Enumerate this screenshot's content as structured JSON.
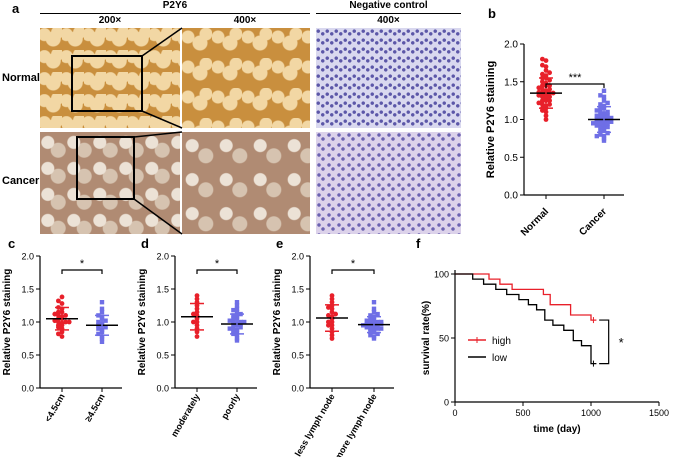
{
  "panel_a": {
    "letter": "a",
    "group_p2y6": "P2Y6",
    "group_neg": "Negative control",
    "mag_200": "200×",
    "mag_400a": "400×",
    "mag_400b": "400×",
    "row_normal": "Normal",
    "row_cancer": "Cancer"
  },
  "colors": {
    "red": "#e8202a",
    "blue": "#6f6fe6",
    "black": "#000000"
  },
  "chart_data": [
    {
      "id": "b",
      "type": "scatter",
      "letter": "b",
      "ylabel": "Relative P2Y6 staining",
      "ylim": [
        0,
        2.0
      ],
      "yticks": [
        "0.0",
        "0.5",
        "1.0",
        "1.5",
        "2.0"
      ],
      "categories": [
        "Normal",
        "Cancer"
      ],
      "significance": "***",
      "series": [
        {
          "color": "#e8202a",
          "marker": "circle",
          "mean": 1.35,
          "sd": 0.2,
          "values": [
            1.05,
            1.1,
            1.12,
            1.15,
            1.18,
            1.2,
            1.2,
            1.22,
            1.25,
            1.25,
            1.28,
            1.3,
            1.3,
            1.32,
            1.33,
            1.35,
            1.35,
            1.36,
            1.38,
            1.4,
            1.4,
            1.42,
            1.45,
            1.45,
            1.48,
            1.5,
            1.52,
            1.55,
            1.55,
            1.58,
            1.6,
            1.62,
            1.65,
            1.7,
            1.72,
            1.78,
            1.8,
            1.15,
            1.25,
            1.35,
            1.45,
            1.0
          ]
        },
        {
          "color": "#6f6fe6",
          "marker": "square",
          "mean": 1.0,
          "sd": 0.17,
          "values": [
            0.72,
            0.75,
            0.78,
            0.8,
            0.82,
            0.85,
            0.88,
            0.9,
            0.9,
            0.92,
            0.93,
            0.95,
            0.95,
            0.96,
            0.97,
            0.98,
            1.0,
            1.0,
            1.0,
            1.02,
            1.03,
            1.05,
            1.05,
            1.08,
            1.1,
            1.1,
            1.12,
            1.15,
            1.18,
            1.2,
            1.22,
            1.25,
            1.3,
            1.32,
            1.38,
            0.85,
            0.95,
            1.05,
            1.15,
            0.78
          ]
        }
      ]
    },
    {
      "id": "c",
      "type": "scatter",
      "letter": "c",
      "ylabel": "Relative P2Y6 staining",
      "ylim": [
        0,
        2.0
      ],
      "yticks": [
        "0.0",
        "0.5",
        "1.0",
        "1.5",
        "2.0"
      ],
      "categories": [
        "<4.5cm",
        "≥4.5cm"
      ],
      "significance": "*",
      "series": [
        {
          "color": "#e8202a",
          "marker": "circle",
          "mean": 1.05,
          "sd": 0.17,
          "values": [
            0.78,
            0.82,
            0.85,
            0.9,
            0.92,
            0.95,
            0.98,
            1.0,
            1.0,
            1.02,
            1.05,
            1.05,
            1.08,
            1.1,
            1.1,
            1.12,
            1.15,
            1.2,
            1.22,
            1.28,
            1.32,
            1.38,
            0.95,
            1.0,
            1.15
          ]
        },
        {
          "color": "#6f6fe6",
          "marker": "square",
          "mean": 0.95,
          "sd": 0.15,
          "values": [
            0.7,
            0.75,
            0.78,
            0.82,
            0.85,
            0.88,
            0.9,
            0.92,
            0.95,
            0.95,
            0.98,
            1.0,
            1.02,
            1.05,
            1.08,
            1.1,
            1.15,
            1.2,
            1.3
          ]
        }
      ]
    },
    {
      "id": "d",
      "type": "scatter",
      "letter": "d",
      "ylabel": "Relative P2Y6 staining",
      "ylim": [
        0,
        2.0
      ],
      "yticks": [
        "0.0",
        "0.5",
        "1.0",
        "1.5",
        "2.0"
      ],
      "categories": [
        "moderately",
        "poorly"
      ],
      "significance": "*",
      "series": [
        {
          "color": "#e8202a",
          "marker": "circle",
          "mean": 1.08,
          "sd": 0.2,
          "values": [
            0.78,
            0.85,
            0.9,
            0.95,
            1.0,
            1.05,
            1.1,
            1.12,
            1.15,
            1.2,
            1.25,
            1.3,
            1.35,
            1.4,
            1.0
          ]
        },
        {
          "color": "#6f6fe6",
          "marker": "square",
          "mean": 0.97,
          "sd": 0.15,
          "values": [
            0.72,
            0.75,
            0.8,
            0.82,
            0.85,
            0.88,
            0.9,
            0.92,
            0.95,
            0.95,
            0.98,
            1.0,
            1.0,
            1.02,
            1.05,
            1.08,
            1.1,
            1.12,
            1.15,
            1.2,
            1.25,
            1.3,
            0.9,
            1.0,
            1.05,
            0.85,
            0.97,
            1.18
          ]
        }
      ]
    },
    {
      "id": "e",
      "type": "scatter",
      "letter": "e",
      "ylabel": "Relative P2Y6 staining",
      "ylim": [
        0,
        2.0
      ],
      "yticks": [
        "0.0",
        "0.5",
        "1.0",
        "1.5",
        "2.0"
      ],
      "categories": [
        "less lymph node",
        "more lymph node"
      ],
      "significance": "*",
      "series": [
        {
          "color": "#e8202a",
          "marker": "circle",
          "mean": 1.06,
          "sd": 0.2,
          "values": [
            0.75,
            0.8,
            0.85,
            0.9,
            0.95,
            1.0,
            1.0,
            1.05,
            1.08,
            1.1,
            1.15,
            1.2,
            1.22,
            1.25,
            1.3,
            1.35,
            1.4,
            0.95,
            1.12
          ]
        },
        {
          "color": "#6f6fe6",
          "marker": "square",
          "mean": 0.96,
          "sd": 0.12,
          "values": [
            0.75,
            0.78,
            0.8,
            0.82,
            0.85,
            0.88,
            0.9,
            0.9,
            0.92,
            0.93,
            0.95,
            0.95,
            0.96,
            0.97,
            0.98,
            1.0,
            1.0,
            1.02,
            1.03,
            1.05,
            1.08,
            1.1,
            1.12,
            1.15,
            1.2,
            1.3,
            0.9,
            1.0,
            0.85,
            0.95
          ]
        }
      ]
    },
    {
      "id": "f",
      "type": "line",
      "letter": "f",
      "xlabel": "time (day)",
      "ylabel": "survival rate(%)",
      "xlim": [
        0,
        1500
      ],
      "ylim": [
        0,
        100
      ],
      "xticks": [
        "0",
        "500",
        "1000",
        "1500"
      ],
      "yticks": [
        "0",
        "50",
        "100"
      ],
      "legend_position": "center-left",
      "significance": "*",
      "series": [
        {
          "name": "high",
          "color": "#e8202a",
          "x": [
            0,
            250,
            250,
            330,
            330,
            420,
            420,
            650,
            650,
            700,
            700,
            850,
            850,
            1000,
            1000,
            1040
          ],
          "y": [
            100,
            100,
            96,
            96,
            92,
            92,
            88,
            88,
            84,
            84,
            76,
            76,
            68,
            68,
            64,
            64
          ]
        },
        {
          "name": "low",
          "color": "#000000",
          "x": [
            0,
            130,
            130,
            210,
            210,
            300,
            300,
            380,
            380,
            470,
            470,
            540,
            540,
            600,
            600,
            660,
            660,
            720,
            720,
            800,
            800,
            870,
            870,
            930,
            930,
            1000,
            1000,
            1040
          ],
          "y": [
            100,
            100,
            96,
            96,
            92,
            92,
            88,
            88,
            84,
            84,
            80,
            80,
            76,
            76,
            72,
            72,
            64,
            64,
            60,
            60,
            56,
            56,
            48,
            48,
            44,
            44,
            30,
            30
          ]
        }
      ]
    }
  ]
}
